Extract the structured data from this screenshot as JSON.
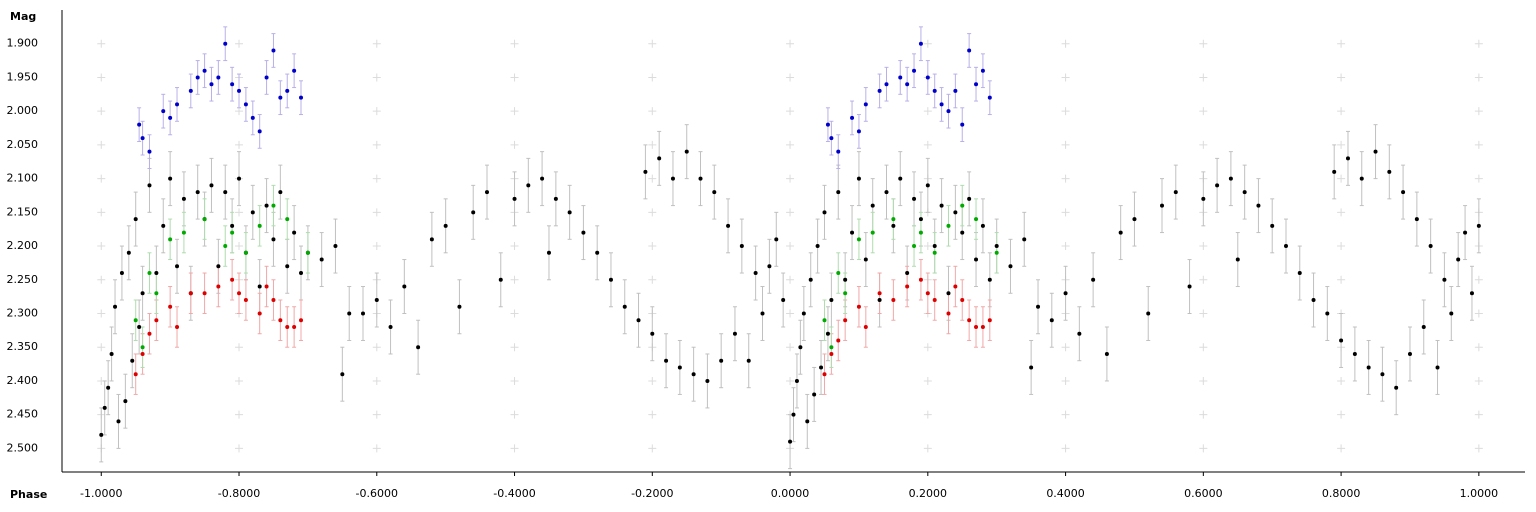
{
  "chart_data": {
    "type": "scatter",
    "x_label": "Phase",
    "y_label": "Mag",
    "xlim": [
      -1.057,
      1.067
    ],
    "ylim": [
      1.85,
      2.535
    ],
    "y_reversed": true,
    "grid": true,
    "xticks": [
      {
        "value": -1.0,
        "label": "-1.0000"
      },
      {
        "value": -0.8,
        "label": "-0.8000"
      },
      {
        "value": -0.6,
        "label": "-0.6000"
      },
      {
        "value": -0.4,
        "label": "-0.4000"
      },
      {
        "value": -0.2,
        "label": "-0.2000"
      },
      {
        "value": 0,
        "label": "0.0000"
      },
      {
        "value": 0.2,
        "label": "0.2000"
      },
      {
        "value": 0.4,
        "label": "0.4000"
      },
      {
        "value": 0.6,
        "label": "0.6000"
      },
      {
        "value": 0.8,
        "label": "0.8000"
      },
      {
        "value": 1.0,
        "label": "1.0000"
      }
    ],
    "yticks": [
      {
        "value": 1.9,
        "label": "1.900"
      },
      {
        "value": 1.95,
        "label": "1.950"
      },
      {
        "value": 2.0,
        "label": "2.000"
      },
      {
        "value": 2.05,
        "label": "2.050"
      },
      {
        "value": 2.1,
        "label": "2.100"
      },
      {
        "value": 2.15,
        "label": "2.150"
      },
      {
        "value": 2.2,
        "label": "2.200"
      },
      {
        "value": 2.25,
        "label": "2.250"
      },
      {
        "value": 2.3,
        "label": "2.300"
      },
      {
        "value": 2.35,
        "label": "2.350"
      },
      {
        "value": 2.4,
        "label": "2.400"
      },
      {
        "value": 2.45,
        "label": "2.450"
      },
      {
        "value": 2.5,
        "label": "2.500"
      }
    ],
    "series": [
      {
        "color": "#000000",
        "error_color": "#c0c0c0",
        "error": 0.04,
        "x": [
          -1.0,
          -0.995,
          -0.99,
          -0.985,
          -0.98,
          -0.975,
          -0.97,
          -0.965,
          -0.96,
          -0.955,
          -0.95,
          -0.945,
          -0.94,
          -0.93,
          -0.92,
          -0.91,
          -0.9,
          -0.89,
          -0.88,
          -0.87,
          -0.86,
          -0.85,
          -0.84,
          -0.83,
          -0.82,
          -0.81,
          -0.8,
          -0.79,
          -0.78,
          -0.77,
          -0.76,
          -0.75,
          -0.74,
          -0.73,
          -0.72,
          -0.71,
          -0.7,
          -0.68,
          -0.66,
          -0.65,
          -0.64,
          -0.62,
          -0.6,
          -0.58,
          -0.56,
          -0.54,
          -0.52,
          -0.5,
          -0.48,
          -0.46,
          -0.44,
          -0.42,
          -0.4,
          -0.38,
          -0.36,
          -0.35,
          -0.34,
          -0.32,
          -0.3,
          -0.28,
          -0.26,
          -0.24,
          -0.22,
          -0.21,
          -0.2,
          -0.19,
          -0.18,
          -0.17,
          -0.16,
          -0.15,
          -0.14,
          -0.13,
          -0.12,
          -0.11,
          -0.1,
          -0.09,
          -0.08,
          -0.07,
          -0.06,
          -0.05,
          -0.04,
          -0.03,
          -0.02,
          -0.01,
          0.0,
          0.005,
          0.01,
          0.015,
          0.02,
          0.025,
          0.03,
          0.035,
          0.04,
          0.045,
          0.05,
          0.055,
          0.06,
          0.07,
          0.08,
          0.09,
          0.1,
          0.11,
          0.12,
          0.13,
          0.14,
          0.15,
          0.16,
          0.17,
          0.18,
          0.19,
          0.2,
          0.21,
          0.22,
          0.23,
          0.24,
          0.25,
          0.26,
          0.27,
          0.28,
          0.29,
          0.3,
          0.32,
          0.34,
          0.35,
          0.36,
          0.38,
          0.4,
          0.42,
          0.44,
          0.46,
          0.48,
          0.5,
          0.52,
          0.54,
          0.56,
          0.58,
          0.6,
          0.62,
          0.64,
          0.65,
          0.66,
          0.68,
          0.7,
          0.72,
          0.74,
          0.76,
          0.78,
          0.79,
          0.8,
          0.81,
          0.82,
          0.83,
          0.84,
          0.85,
          0.86,
          0.87,
          0.88,
          0.89,
          0.9,
          0.91,
          0.92,
          0.93,
          0.94,
          0.95,
          0.96,
          0.97,
          0.98,
          0.99,
          1.0
        ],
        "values": [
          2.48,
          2.44,
          2.41,
          2.36,
          2.29,
          2.46,
          2.24,
          2.43,
          2.21,
          2.37,
          2.16,
          2.32,
          2.27,
          2.11,
          2.24,
          2.17,
          2.1,
          2.23,
          2.13,
          2.27,
          2.12,
          2.16,
          2.11,
          2.23,
          2.12,
          2.17,
          2.1,
          2.21,
          2.15,
          2.26,
          2.14,
          2.19,
          2.12,
          2.23,
          2.18,
          2.24,
          2.21,
          2.22,
          2.2,
          2.39,
          2.3,
          2.3,
          2.28,
          2.32,
          2.26,
          2.35,
          2.19,
          2.17,
          2.29,
          2.15,
          2.12,
          2.25,
          2.13,
          2.11,
          2.1,
          2.21,
          2.13,
          2.15,
          2.18,
          2.21,
          2.25,
          2.29,
          2.31,
          2.09,
          2.33,
          2.07,
          2.37,
          2.1,
          2.38,
          2.06,
          2.39,
          2.1,
          2.4,
          2.12,
          2.37,
          2.17,
          2.33,
          2.2,
          2.37,
          2.24,
          2.3,
          2.23,
          2.19,
          2.28,
          2.49,
          2.45,
          2.4,
          2.35,
          2.3,
          2.46,
          2.25,
          2.42,
          2.2,
          2.38,
          2.15,
          2.33,
          2.28,
          2.12,
          2.25,
          2.18,
          2.1,
          2.22,
          2.14,
          2.28,
          2.12,
          2.17,
          2.1,
          2.24,
          2.13,
          2.16,
          2.11,
          2.2,
          2.14,
          2.27,
          2.15,
          2.18,
          2.13,
          2.22,
          2.17,
          2.25,
          2.2,
          2.23,
          2.19,
          2.38,
          2.29,
          2.31,
          2.27,
          2.33,
          2.25,
          2.36,
          2.18,
          2.16,
          2.3,
          2.14,
          2.12,
          2.26,
          2.13,
          2.11,
          2.1,
          2.22,
          2.12,
          2.14,
          2.17,
          2.2,
          2.24,
          2.28,
          2.3,
          2.09,
          2.34,
          2.07,
          2.36,
          2.1,
          2.38,
          2.06,
          2.39,
          2.09,
          2.41,
          2.12,
          2.36,
          2.16,
          2.32,
          2.2,
          2.38,
          2.25,
          2.3,
          2.22,
          2.18,
          2.27,
          2.17
        ]
      },
      {
        "color": "#0000cc",
        "error_color": "#b8b0e8",
        "error": 0.025,
        "x": [
          -0.945,
          -0.94,
          -0.93,
          -0.91,
          -0.9,
          -0.89,
          -0.87,
          -0.86,
          -0.85,
          -0.84,
          -0.83,
          -0.82,
          -0.81,
          -0.8,
          -0.79,
          -0.78,
          -0.77,
          -0.76,
          -0.75,
          -0.74,
          -0.73,
          -0.72,
          -0.71,
          0.055,
          0.06,
          0.07,
          0.09,
          0.1,
          0.11,
          0.13,
          0.14,
          0.16,
          0.17,
          0.18,
          0.19,
          0.2,
          0.21,
          0.22,
          0.23,
          0.24,
          0.25,
          0.26,
          0.27,
          0.28,
          0.29
        ],
        "values": [
          2.02,
          2.04,
          2.06,
          2.0,
          2.01,
          1.99,
          1.97,
          1.95,
          1.94,
          1.96,
          1.95,
          1.9,
          1.96,
          1.97,
          1.99,
          2.01,
          2.03,
          1.95,
          1.91,
          1.98,
          1.97,
          1.94,
          1.98,
          2.02,
          2.04,
          2.06,
          2.01,
          2.03,
          1.99,
          1.97,
          1.96,
          1.95,
          1.96,
          1.94,
          1.9,
          1.95,
          1.97,
          1.99,
          2.0,
          1.97,
          2.02,
          1.91,
          1.96,
          1.94,
          1.98
        ]
      },
      {
        "color": "#dd0000",
        "error_color": "#f0a8a8",
        "error": 0.03,
        "x": [
          -0.95,
          -0.94,
          -0.93,
          -0.92,
          -0.9,
          -0.89,
          -0.87,
          -0.85,
          -0.83,
          -0.81,
          -0.8,
          -0.79,
          -0.77,
          -0.76,
          -0.75,
          -0.74,
          -0.73,
          -0.72,
          -0.71,
          0.05,
          0.06,
          0.07,
          0.08,
          0.1,
          0.11,
          0.13,
          0.15,
          0.17,
          0.19,
          0.2,
          0.21,
          0.23,
          0.24,
          0.25,
          0.26,
          0.27,
          0.28,
          0.29
        ],
        "values": [
          2.39,
          2.36,
          2.33,
          2.31,
          2.29,
          2.32,
          2.27,
          2.27,
          2.26,
          2.25,
          2.27,
          2.28,
          2.3,
          2.26,
          2.28,
          2.31,
          2.32,
          2.32,
          2.31,
          2.39,
          2.36,
          2.34,
          2.31,
          2.29,
          2.32,
          2.27,
          2.28,
          2.26,
          2.25,
          2.27,
          2.28,
          2.3,
          2.26,
          2.28,
          2.31,
          2.32,
          2.32,
          2.31
        ]
      },
      {
        "color": "#00aa00",
        "error_color": "#b0dcb0",
        "error": 0.03,
        "x": [
          -0.95,
          -0.94,
          -0.93,
          -0.92,
          -0.9,
          -0.88,
          -0.85,
          -0.82,
          -0.81,
          -0.79,
          -0.77,
          -0.75,
          -0.73,
          -0.7,
          0.05,
          0.06,
          0.07,
          0.08,
          0.1,
          0.12,
          0.15,
          0.18,
          0.19,
          0.21,
          0.23,
          0.25,
          0.27,
          0.3
        ],
        "values": [
          2.31,
          2.35,
          2.24,
          2.27,
          2.19,
          2.18,
          2.16,
          2.2,
          2.18,
          2.21,
          2.17,
          2.14,
          2.16,
          2.21,
          2.31,
          2.35,
          2.24,
          2.27,
          2.19,
          2.18,
          2.16,
          2.2,
          2.18,
          2.21,
          2.17,
          2.14,
          2.16,
          2.21
        ]
      }
    ]
  }
}
